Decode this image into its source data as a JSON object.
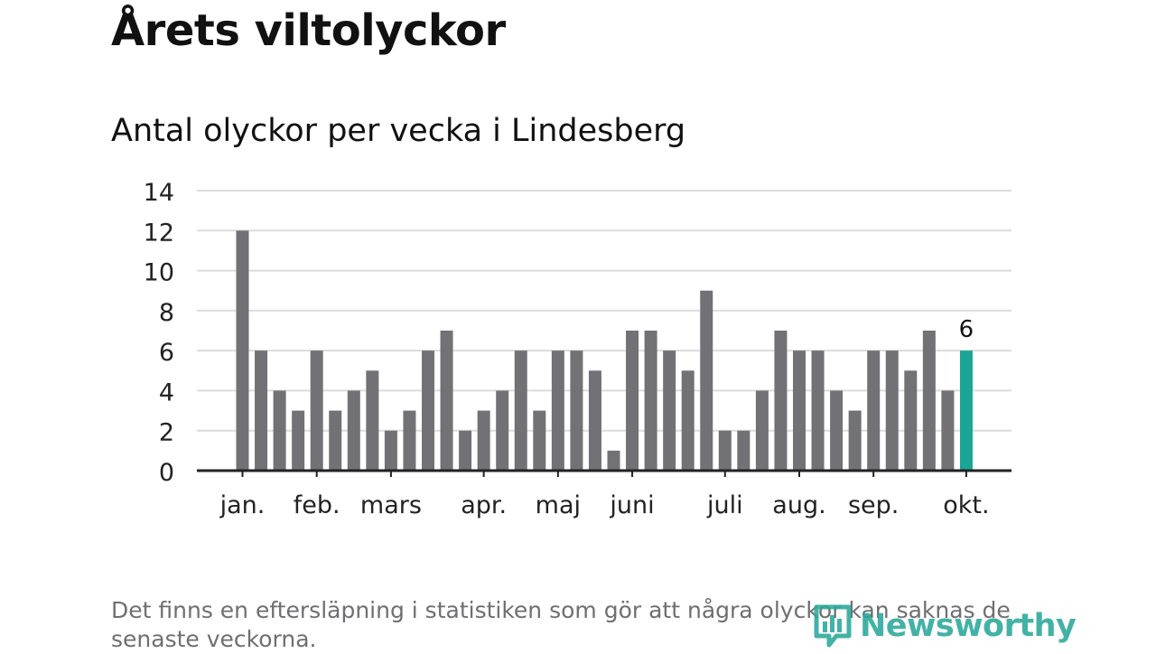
{
  "header": {
    "title": "Årets viltolyckor",
    "subtitle": "Antal olyckor per vecka i Lindesberg"
  },
  "chart_data": {
    "type": "bar",
    "title": "Antal olyckor per vecka i Lindesberg",
    "xlabel": "",
    "ylabel": "",
    "ylim": [
      0,
      14
    ],
    "yticks": [
      0,
      2,
      4,
      6,
      8,
      10,
      12,
      14
    ],
    "grid": true,
    "values": [
      12,
      6,
      4,
      3,
      6,
      3,
      4,
      5,
      2,
      3,
      6,
      7,
      2,
      3,
      4,
      6,
      3,
      6,
      6,
      5,
      1,
      7,
      7,
      6,
      5,
      9,
      2,
      2,
      4,
      7,
      6,
      6,
      4,
      3,
      6,
      6,
      5,
      7,
      4,
      6
    ],
    "highlight_index": 39,
    "highlight_label": "6",
    "month_labels": [
      {
        "label": "jan.",
        "bar_index": 0
      },
      {
        "label": "feb.",
        "bar_index": 4
      },
      {
        "label": "mars",
        "bar_index": 8
      },
      {
        "label": "apr.",
        "bar_index": 13
      },
      {
        "label": "maj",
        "bar_index": 17
      },
      {
        "label": "juni",
        "bar_index": 21
      },
      {
        "label": "juli",
        "bar_index": 26
      },
      {
        "label": "aug.",
        "bar_index": 30
      },
      {
        "label": "sep.",
        "bar_index": 34
      },
      {
        "label": "okt.",
        "bar_index": 39
      }
    ],
    "colors": {
      "bar": "#727176",
      "highlight": "#1aa596",
      "grid": "#dcdcdc",
      "axis": "#222222"
    }
  },
  "footer": {
    "note": "Det finns en eftersläpning i statistiken som gör att några olyckor kan saknas de senaste veckorna.",
    "logo_text": "Newsworthy",
    "logo_icon": "bar-chart-bubble-icon"
  }
}
